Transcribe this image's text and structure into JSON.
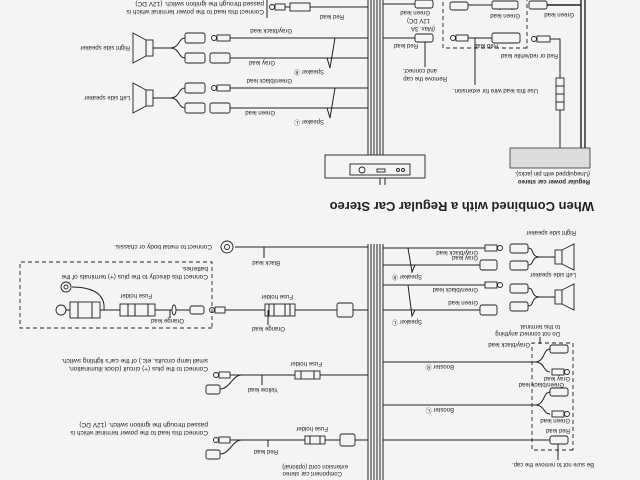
{
  "title": "When Combined with a Regular Car Stereo",
  "diagram_a": {
    "component_cord": [
      "Component car stereo",
      "extension cord (optional)"
    ],
    "red_lead": "Red lead",
    "red_fuse_holder": "Fuse holder",
    "ignition_note": [
      "Connect this lead to the power terminal which is",
      "passed through the ignition switch. (12V DC)"
    ],
    "yellow_lead": "Yellow lead",
    "yellow_fuse_holder": "Fuse holder",
    "lighting_note": [
      "Connect to the plus (+) circuit (clock illumination,",
      "small lamp circuits, etc.) of the car's lighting switch."
    ],
    "orange_lead": "Orange lead",
    "orange_fuse_holder": "Fuse holder",
    "battery_box": {
      "orange_lead": "Orange lead",
      "fuse_holder": "Fuse holder",
      "note": [
        "Connect this directly to the plus (+) terminals of the",
        "batteries."
      ]
    },
    "black_lead": "Black lead",
    "chassis_note": "Connect to metal body or chassis.",
    "speakers": {
      "right_label": "Right side speaker",
      "left_label": "Left side speaker",
      "gray_black": "Gray/black lead",
      "gray": "Gray lead",
      "green_black": "Green/black lead",
      "green": "Green lead",
      "speaker_r": "Speaker Ⓡ",
      "speaker_l": "Speaker Ⓛ",
      "no_connect": [
        "Do not connect anything",
        "to this terminal."
      ]
    },
    "booster": {
      "gray_black": "Gray/black lead",
      "gray": "Gray lead",
      "green_black": "Green/black lead",
      "green": "Green lead",
      "red": "Red lead",
      "booster_r": "Booster Ⓡ",
      "booster_l": "Booster Ⓛ",
      "cap_note": "Be sure not to remove the cap."
    }
  },
  "diagram_b": {
    "ignition_note": [
      "Connect this lead to the power terminal which is",
      "passed through the ignition switch. (12V DC)"
    ],
    "red_lead_top": "Red lead",
    "speakers": {
      "right_label": "Right side speaker",
      "left_label": "Left side speaker",
      "gray_black": "Gray/black lead",
      "gray": "Gray lead",
      "green_black": "Green/black lead",
      "green": "Green lead",
      "speaker_r": "Speaker Ⓡ",
      "speaker_l": "Speaker Ⓛ"
    },
    "red_lead": "Red lead",
    "max_rating": [
      "(Max. 3A",
      "12V DC)"
    ],
    "green_lead": "Green lead",
    "remove_cap": [
      "Remove the cap",
      "and connect."
    ],
    "extension_box": {
      "red_lead": "Red lead",
      "green_lead": "Green lead"
    },
    "extension_note": "Use this lead wire for extension.",
    "red_white_lead": "Red or red/white lead",
    "stereo_green_lead": "Green lead",
    "stereo_label": [
      "Regular power car stereo",
      "(Unequipped with pin jacks)."
    ]
  }
}
